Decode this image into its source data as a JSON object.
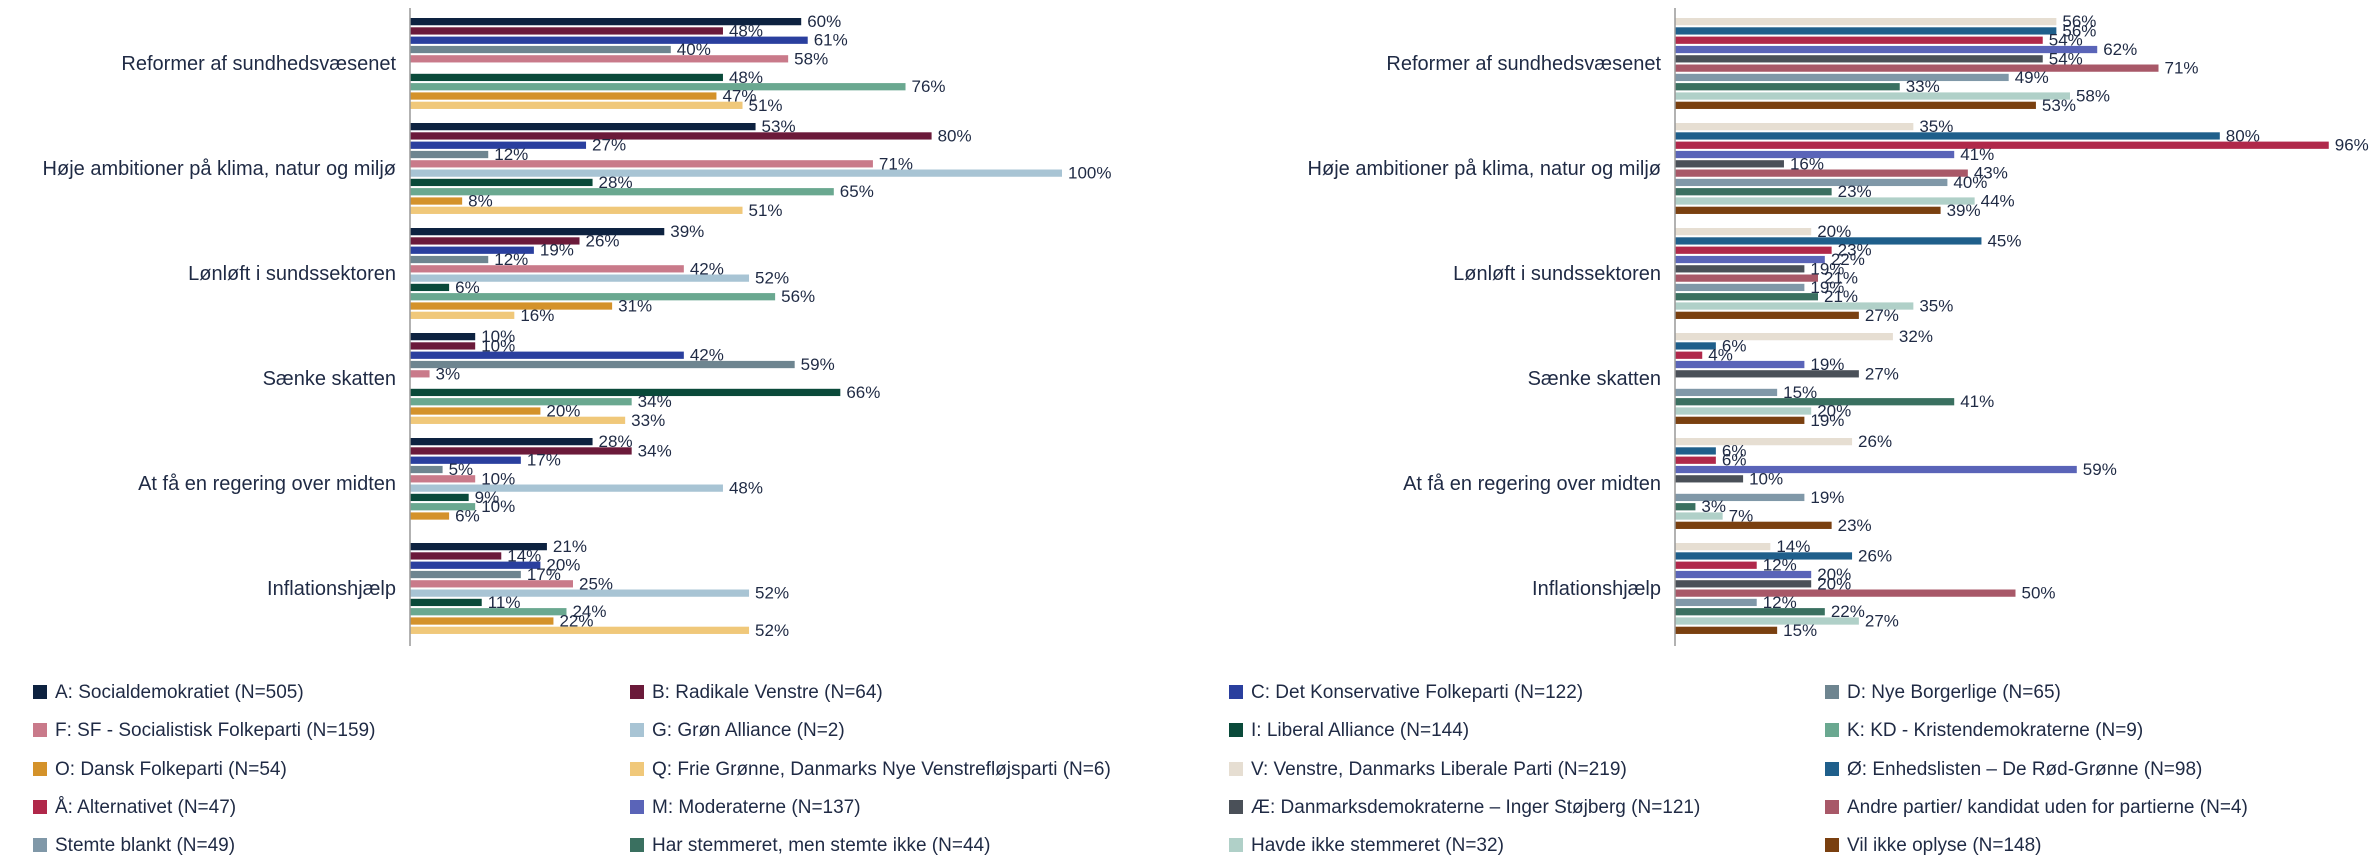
{
  "chart_data": [
    {
      "type": "bar",
      "orientation": "horizontal",
      "xlim": [
        0,
        100
      ],
      "categories": [
        "Reformer af sundhedsvæsenet",
        "Høje ambitioner på klima, natur og miljø",
        "Lønløft i sundssektoren",
        "Sænke skatten",
        "At få en regering over midten",
        "Inflationshjælp"
      ],
      "series": [
        {
          "name": "A: Socialdemokratiet (N=505)",
          "color": "#0d2240",
          "values": [
            60,
            53,
            39,
            10,
            28,
            21
          ],
          "value_labels": [
            "60%",
            "53%",
            "39%",
            "10%",
            "28%",
            "21%"
          ]
        },
        {
          "name": "B: Radikale Venstre (N=64)",
          "color": "#6b1a3a",
          "values": [
            48,
            80,
            26,
            10,
            34,
            14
          ],
          "value_labels": [
            "48%",
            "80%",
            "26%",
            "10%",
            "34%",
            "14%"
          ]
        },
        {
          "name": "C: Det Konservative Folkeparti (N=122)",
          "color": "#2a3f9e",
          "values": [
            61,
            27,
            19,
            42,
            17,
            20
          ],
          "value_labels": [
            "61%",
            "27%",
            "19%",
            "42%",
            "17%",
            "20%"
          ]
        },
        {
          "name": "D: Nye Borgerlige (N=65)",
          "color": "#6e8590",
          "values": [
            40,
            12,
            12,
            59,
            5,
            17
          ],
          "value_labels": [
            "40%",
            "12%",
            "12%",
            "59%",
            "5%",
            "17%"
          ]
        },
        {
          "name": "F: SF - Socialistisk Folkeparti (N=159)",
          "color": "#c97a8a",
          "values": [
            58,
            71,
            42,
            3,
            10,
            25
          ],
          "value_labels": [
            "58%",
            "71%",
            "42%",
            "3%",
            "10%",
            "25%"
          ]
        },
        {
          "name": "G: Grøn Alliance (N=2)",
          "color": "#a8c4d4",
          "values": [
            null,
            100,
            52,
            null,
            48,
            52
          ],
          "value_labels": [
            null,
            "100%",
            "52%",
            null,
            "48%",
            "52%"
          ]
        },
        {
          "name": "I: Liberal Alliance (N=144)",
          "color": "#0a4a3a",
          "values": [
            48,
            28,
            6,
            66,
            9,
            11
          ],
          "value_labels": [
            "48%",
            "28%",
            "6%",
            "66%",
            "9%",
            "11%"
          ]
        },
        {
          "name": "K: KD - Kristendemokraterne (N=9)",
          "color": "#6aa890",
          "values": [
            76,
            65,
            56,
            34,
            10,
            24
          ],
          "value_labels": [
            "76%",
            "65%",
            "56%",
            "34%",
            "10%",
            "24%"
          ]
        },
        {
          "name": "O: Dansk Folkeparti (N=54)",
          "color": "#d4922a",
          "values": [
            47,
            8,
            31,
            20,
            6,
            22
          ],
          "value_labels": [
            "47%",
            "8%",
            "31%",
            "20%",
            "6%",
            "22%"
          ]
        },
        {
          "name": "Q: Frie Grønne, Danmarks Nye Venstrefløjsparti (N=6)",
          "color": "#f0c87a",
          "values": [
            51,
            51,
            16,
            33,
            null,
            52
          ],
          "value_labels": [
            "51%",
            "51%",
            "16%",
            "33%",
            null,
            "52%"
          ]
        }
      ]
    },
    {
      "type": "bar",
      "orientation": "horizontal",
      "xlim": [
        0,
        100
      ],
      "categories": [
        "Reformer af sundhedsvæsenet",
        "Høje ambitioner på klima, natur og miljø",
        "Lønløft i sundssektoren",
        "Sænke skatten",
        "At få en regering over midten",
        "Inflationshjælp"
      ],
      "series": [
        {
          "name": "V: Venstre, Danmarks Liberale Parti (N=219)",
          "color": "#e6ded2",
          "values": [
            56,
            35,
            20,
            32,
            26,
            14
          ],
          "value_labels": [
            "56%",
            "35%",
            "20%",
            "32%",
            "26%",
            "14%"
          ]
        },
        {
          "name": "Ø: Enhedslisten – De Rød-Grønne (N=98)",
          "color": "#1f5f8b",
          "values": [
            56,
            80,
            45,
            6,
            6,
            26
          ],
          "value_labels": [
            "56%",
            "80%",
            "45%",
            "6%",
            "6%",
            "26%"
          ]
        },
        {
          "name": "Å: Alternativet (N=47)",
          "color": "#b0284a",
          "values": [
            54,
            96,
            23,
            4,
            6,
            12
          ],
          "value_labels": [
            "54%",
            "96%",
            "23%",
            "4%",
            "6%",
            "12%"
          ]
        },
        {
          "name": "M: Moderaterne (N=137)",
          "color": "#5a64b8",
          "values": [
            62,
            41,
            22,
            19,
            59,
            20
          ],
          "value_labels": [
            "62%",
            "41%",
            "22%",
            "19%",
            "59%",
            "20%"
          ]
        },
        {
          "name": "Æ: Danmarksdemokraterne – Inger Støjberg (N=121)",
          "color": "#4a5058",
          "values": [
            54,
            16,
            19,
            27,
            10,
            20
          ],
          "value_labels": [
            "54%",
            "16%",
            "19%",
            "27%",
            "10%",
            "20%"
          ]
        },
        {
          "name": "Andre partier/ kandidat uden for partierne (N=4)",
          "color": "#a85868",
          "values": [
            71,
            43,
            21,
            null,
            null,
            50
          ],
          "value_labels": [
            "71%",
            "43%",
            "21%",
            null,
            null,
            "50%"
          ]
        },
        {
          "name": "Stemte blankt (N=49)",
          "color": "#8098a8",
          "values": [
            49,
            40,
            19,
            15,
            19,
            12
          ],
          "value_labels": [
            "49%",
            "40%",
            "19%",
            "15%",
            "19%",
            "12%"
          ]
        },
        {
          "name": "Har stemmeret, men stemte ikke (N=44)",
          "color": "#3a7060",
          "values": [
            33,
            23,
            21,
            41,
            3,
            22
          ],
          "value_labels": [
            "33%",
            "23%",
            "21%",
            "41%",
            "3%",
            "22%"
          ]
        },
        {
          "name": "Havde ikke stemmeret (N=32)",
          "color": "#b0d0c8",
          "values": [
            58,
            44,
            35,
            20,
            7,
            27
          ],
          "value_labels": [
            "58%",
            "44%",
            "35%",
            "20%",
            "7%",
            "27%"
          ]
        },
        {
          "name": "Vil ikke oplyse (N=148)",
          "color": "#7a4010",
          "values": [
            53,
            39,
            27,
            19,
            23,
            15
          ],
          "value_labels": [
            "53%",
            "39%",
            "27%",
            "19%",
            "23%",
            "15%"
          ]
        }
      ]
    }
  ]
}
